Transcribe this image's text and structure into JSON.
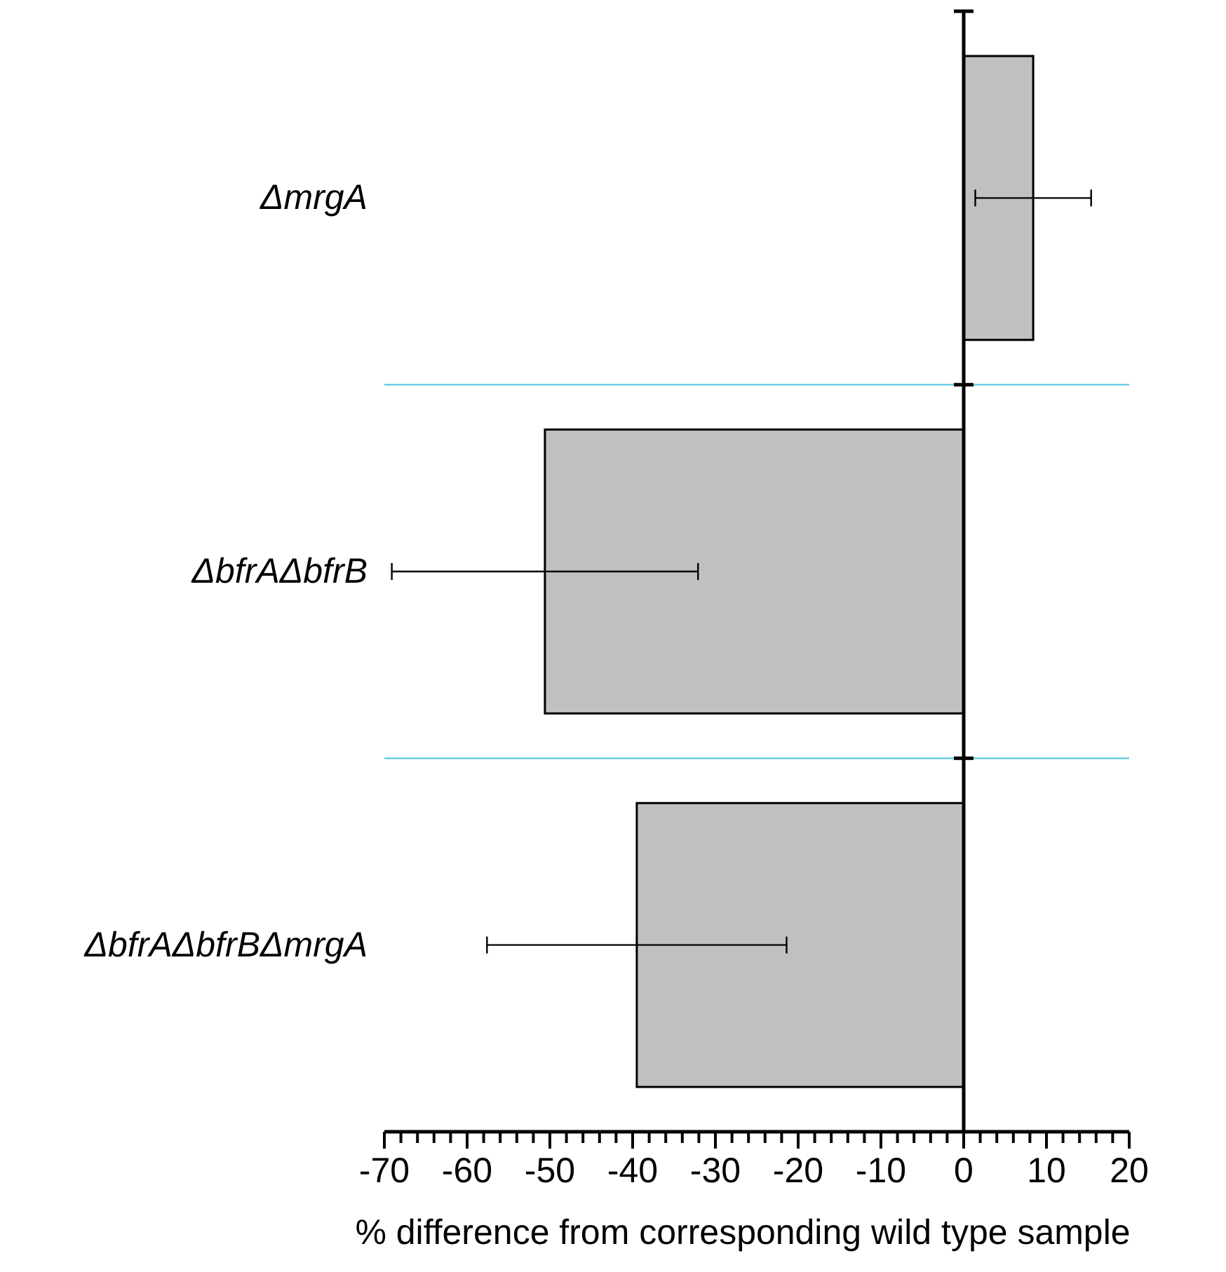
{
  "chart_data": {
    "type": "bar",
    "orientation": "horizontal",
    "xlabel": "% difference from corresponding wild type sample",
    "categories": [
      "ΔmrgA",
      "ΔbfrAΔbfrB",
      "ΔbfrAΔbfrBΔmrgA"
    ],
    "values": [
      8.4,
      -50.6,
      -39.5
    ],
    "errors": [
      7,
      18.5,
      18.1
    ],
    "color": "#c0c0c0",
    "xlim": [
      -70,
      20
    ],
    "xticks": [
      -70,
      {
        "value": -68,
        "label": null
      },
      {
        "value": -66,
        "label": null
      },
      {
        "value": -64,
        "label": null
      },
      {
        "value": -62,
        "label": null
      },
      -60,
      {
        "value": -58,
        "label": null
      },
      {
        "value": -56,
        "label": null
      },
      {
        "value": -54,
        "label": null
      },
      {
        "value": -52,
        "label": null
      },
      -50,
      {
        "value": -48,
        "label": null
      },
      {
        "value": -46,
        "label": null
      },
      {
        "value": -44,
        "label": null
      },
      {
        "value": -42,
        "label": null
      },
      -40,
      {
        "value": -38,
        "label": null
      },
      {
        "value": -36,
        "label": null
      },
      {
        "value": -34,
        "label": null
      },
      {
        "value": -32,
        "label": null
      },
      -30,
      {
        "value": -28,
        "label": null
      },
      {
        "value": -26,
        "label": null
      },
      {
        "value": -24,
        "label": null
      },
      {
        "value": -22,
        "label": null
      },
      -20,
      {
        "value": -18,
        "label": null
      },
      {
        "value": -16,
        "label": null
      },
      {
        "value": -14,
        "label": null
      },
      {
        "value": -12,
        "label": null
      },
      -10,
      {
        "value": -8,
        "label": null
      },
      {
        "value": -6,
        "label": null
      },
      {
        "value": -4,
        "label": null
      },
      {
        "value": -2,
        "label": null
      },
      0,
      {
        "value": 2,
        "label": null
      },
      {
        "value": 4,
        "label": null
      },
      {
        "value": 6,
        "label": null
      },
      {
        "value": 8,
        "label": null
      },
      10,
      {
        "value": 12,
        "label": null
      },
      {
        "value": 14,
        "label": null
      },
      {
        "value": 16,
        "label": null
      },
      {
        "value": 18,
        "label": null
      },
      20
    ],
    "grid": "y"
  }
}
